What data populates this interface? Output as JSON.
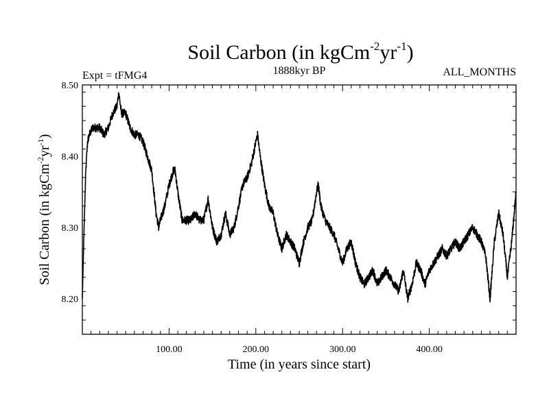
{
  "chart_data": {
    "type": "line",
    "title": {
      "base": "Soil Carbon (in kgCm",
      "sup1": "-2",
      "mid": "yr",
      "sup2": "-1",
      "end": ")"
    },
    "subtitle_left": "Expt = tFMG4",
    "subtitle_center": "1888kyr BP",
    "subtitle_right": "ALL_MONTHS",
    "xlabel": "Time (in years since start)",
    "ylabel": {
      "base": "Soil Carbon (in kgCm",
      "sup1": "-2",
      "mid": "yr",
      "sup2": "-1",
      "end": ")"
    },
    "xlim": [
      0,
      500
    ],
    "ylim": [
      8.15,
      8.5
    ],
    "x_ticks": [
      {
        "value": 100,
        "label": "100.00"
      },
      {
        "value": 200,
        "label": "200.00"
      },
      {
        "value": 300,
        "label": "300.00"
      },
      {
        "value": 400,
        "label": "400.00"
      }
    ],
    "y_ticks": [
      {
        "value": 8.2,
        "label": "8.20"
      },
      {
        "value": 8.3,
        "label": "8.30"
      },
      {
        "value": 8.4,
        "label": "8.40"
      },
      {
        "value": 8.5,
        "label": "8.50"
      }
    ],
    "noise_amplitude": 0.006,
    "series": [
      {
        "name": "Soil Carbon",
        "x": [
          0,
          2,
          4,
          6,
          8,
          12,
          16,
          20,
          25,
          30,
          35,
          40,
          42,
          45,
          50,
          55,
          60,
          65,
          70,
          75,
          80,
          85,
          88,
          90,
          95,
          100,
          105,
          107,
          110,
          115,
          120,
          125,
          130,
          135,
          140,
          145,
          150,
          155,
          160,
          165,
          170,
          175,
          180,
          185,
          190,
          195,
          200,
          202,
          205,
          210,
          215,
          220,
          225,
          230,
          235,
          240,
          245,
          250,
          255,
          260,
          265,
          270,
          272,
          275,
          280,
          285,
          290,
          295,
          300,
          305,
          310,
          315,
          320,
          325,
          330,
          335,
          340,
          345,
          350,
          355,
          360,
          365,
          370,
          375,
          380,
          385,
          390,
          395,
          400,
          405,
          410,
          415,
          420,
          425,
          430,
          435,
          440,
          445,
          450,
          455,
          460,
          465,
          470,
          475,
          480,
          485,
          490,
          495,
          500
        ],
        "values": [
          8.2,
          8.3,
          8.38,
          8.42,
          8.43,
          8.44,
          8.44,
          8.44,
          8.43,
          8.44,
          8.46,
          8.47,
          8.49,
          8.46,
          8.46,
          8.44,
          8.43,
          8.43,
          8.42,
          8.4,
          8.38,
          8.32,
          8.3,
          8.31,
          8.33,
          8.36,
          8.38,
          8.38,
          8.35,
          8.31,
          8.31,
          8.31,
          8.32,
          8.31,
          8.31,
          8.34,
          8.3,
          8.28,
          8.29,
          8.32,
          8.29,
          8.3,
          8.33,
          8.36,
          8.37,
          8.39,
          8.42,
          8.43,
          8.4,
          8.36,
          8.33,
          8.32,
          8.29,
          8.27,
          8.29,
          8.28,
          8.27,
          8.25,
          8.28,
          8.3,
          8.31,
          8.35,
          8.36,
          8.33,
          8.31,
          8.3,
          8.29,
          8.27,
          8.25,
          8.27,
          8.28,
          8.25,
          8.23,
          8.22,
          8.23,
          8.24,
          8.22,
          8.23,
          8.24,
          8.23,
          8.22,
          8.21,
          8.24,
          8.2,
          8.22,
          8.25,
          8.24,
          8.22,
          8.24,
          8.25,
          8.26,
          8.27,
          8.26,
          8.27,
          8.28,
          8.27,
          8.28,
          8.29,
          8.3,
          8.29,
          8.28,
          8.26,
          8.2,
          8.28,
          8.32,
          8.29,
          8.23,
          8.28,
          8.35
        ]
      }
    ]
  }
}
